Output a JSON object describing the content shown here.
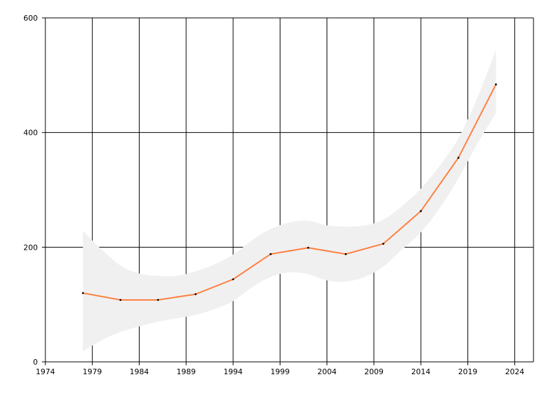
{
  "chart_data": {
    "type": "line",
    "title": "",
    "xlabel": "",
    "ylabel": "",
    "xlim": [
      1974,
      2026
    ],
    "ylim": [
      0,
      600
    ],
    "x_ticks": [
      "1974",
      "1979",
      "1984",
      "1989",
      "1994",
      "1999",
      "2004",
      "2009",
      "2014",
      "2019",
      "2024"
    ],
    "y_ticks": [
      "0",
      "200",
      "400",
      "600"
    ],
    "grid": true,
    "legend": "none",
    "series": [
      {
        "color": "#ff7f3f",
        "x": [
          1978,
          1982,
          1986,
          1990,
          1994,
          1998,
          2002,
          2006,
          2010,
          2014,
          2018,
          2022
        ],
        "y": [
          120,
          108,
          108,
          118,
          144,
          188,
          199,
          188,
          206,
          263,
          356,
          484
        ]
      }
    ],
    "confidence_band": {
      "color": "#f0f0f0",
      "x": [
        1978,
        1980,
        1982,
        1984,
        1986,
        1988,
        1990,
        1992,
        1994,
        1996,
        1998,
        2000,
        2002,
        2004,
        2006,
        2008,
        2010,
        2012,
        2014,
        2016,
        2018,
        2020,
        2022
      ],
      "upper": [
        228,
        196,
        168,
        154,
        150,
        150,
        158,
        170,
        187,
        212,
        232,
        243,
        246,
        238,
        236,
        238,
        248,
        272,
        302,
        342,
        390,
        460,
        544
      ],
      "lower": [
        18,
        38,
        52,
        62,
        70,
        76,
        82,
        92,
        106,
        130,
        148,
        156,
        153,
        142,
        140,
        148,
        166,
        196,
        226,
        268,
        320,
        380,
        434
      ]
    }
  }
}
